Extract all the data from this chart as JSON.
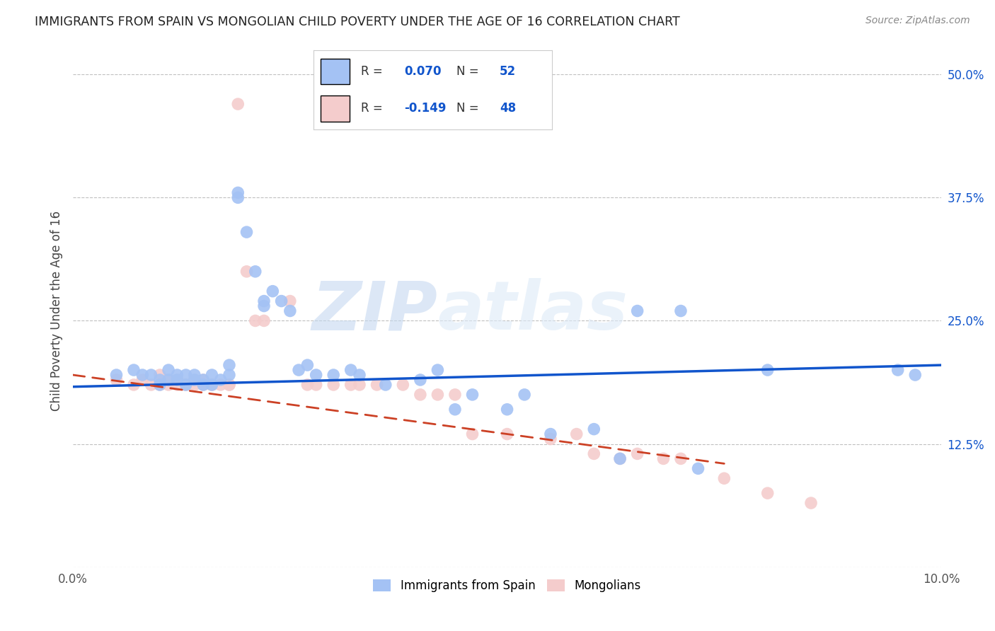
{
  "title": "IMMIGRANTS FROM SPAIN VS MONGOLIAN CHILD POVERTY UNDER THE AGE OF 16 CORRELATION CHART",
  "source": "Source: ZipAtlas.com",
  "ylabel": "Child Poverty Under the Age of 16",
  "xlim": [
    0.0,
    0.1
  ],
  "ylim": [
    0.0,
    0.52
  ],
  "yticks": [
    0.0,
    0.125,
    0.25,
    0.375,
    0.5
  ],
  "ytick_labels": [
    "",
    "12.5%",
    "25.0%",
    "37.5%",
    "50.0%"
  ],
  "xticks": [
    0.0,
    0.02,
    0.04,
    0.06,
    0.08,
    0.1
  ],
  "xtick_labels": [
    "0.0%",
    "",
    "",
    "",
    "",
    "10.0%"
  ],
  "blue_R": 0.07,
  "blue_N": 52,
  "pink_R": -0.149,
  "pink_N": 48,
  "blue_color": "#a4c2f4",
  "pink_color": "#f4cccc",
  "blue_line_color": "#1155cc",
  "pink_line_color": "#cc4125",
  "watermark_zip": "ZIP",
  "watermark_atlas": "atlas",
  "legend_label_blue": "Immigrants from Spain",
  "legend_label_pink": "Mongolians",
  "blue_scatter_x": [
    0.005,
    0.007,
    0.008,
    0.009,
    0.01,
    0.01,
    0.011,
    0.011,
    0.012,
    0.012,
    0.013,
    0.013,
    0.014,
    0.014,
    0.015,
    0.015,
    0.016,
    0.016,
    0.017,
    0.018,
    0.018,
    0.019,
    0.019,
    0.02,
    0.021,
    0.022,
    0.022,
    0.023,
    0.024,
    0.025,
    0.026,
    0.027,
    0.028,
    0.03,
    0.032,
    0.033,
    0.036,
    0.04,
    0.042,
    0.044,
    0.046,
    0.05,
    0.052,
    0.055,
    0.06,
    0.063,
    0.065,
    0.07,
    0.072,
    0.08,
    0.095,
    0.097
  ],
  "blue_scatter_y": [
    0.195,
    0.2,
    0.195,
    0.195,
    0.185,
    0.19,
    0.2,
    0.19,
    0.195,
    0.19,
    0.185,
    0.195,
    0.19,
    0.195,
    0.185,
    0.19,
    0.185,
    0.195,
    0.19,
    0.195,
    0.205,
    0.38,
    0.375,
    0.34,
    0.3,
    0.265,
    0.27,
    0.28,
    0.27,
    0.26,
    0.2,
    0.205,
    0.195,
    0.195,
    0.2,
    0.195,
    0.185,
    0.19,
    0.2,
    0.16,
    0.175,
    0.16,
    0.175,
    0.135,
    0.14,
    0.11,
    0.26,
    0.26,
    0.1,
    0.2,
    0.2,
    0.195
  ],
  "pink_scatter_x": [
    0.005,
    0.007,
    0.008,
    0.009,
    0.01,
    0.01,
    0.011,
    0.011,
    0.012,
    0.012,
    0.013,
    0.013,
    0.014,
    0.014,
    0.015,
    0.015,
    0.016,
    0.016,
    0.017,
    0.018,
    0.018,
    0.019,
    0.02,
    0.021,
    0.022,
    0.025,
    0.027,
    0.028,
    0.03,
    0.032,
    0.033,
    0.035,
    0.038,
    0.04,
    0.042,
    0.044,
    0.046,
    0.05,
    0.055,
    0.058,
    0.06,
    0.063,
    0.065,
    0.068,
    0.07,
    0.075,
    0.08,
    0.085
  ],
  "pink_scatter_y": [
    0.19,
    0.185,
    0.19,
    0.185,
    0.195,
    0.185,
    0.185,
    0.19,
    0.185,
    0.19,
    0.185,
    0.185,
    0.185,
    0.19,
    0.185,
    0.19,
    0.185,
    0.185,
    0.185,
    0.185,
    0.185,
    0.47,
    0.3,
    0.25,
    0.25,
    0.27,
    0.185,
    0.185,
    0.185,
    0.185,
    0.185,
    0.185,
    0.185,
    0.175,
    0.175,
    0.175,
    0.135,
    0.135,
    0.13,
    0.135,
    0.115,
    0.11,
    0.115,
    0.11,
    0.11,
    0.09,
    0.075,
    0.065
  ],
  "blue_line_x": [
    0.0,
    0.1
  ],
  "blue_line_y": [
    0.183,
    0.205
  ],
  "pink_line_x": [
    0.0,
    0.075
  ],
  "pink_line_y": [
    0.195,
    0.105
  ]
}
